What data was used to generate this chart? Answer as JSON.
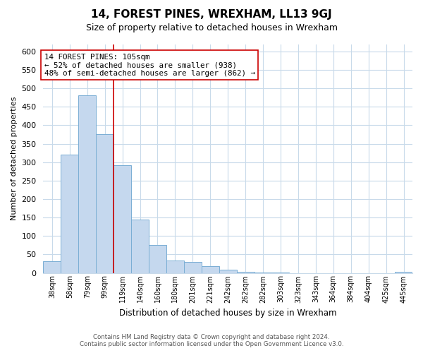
{
  "title": "14, FOREST PINES, WREXHAM, LL13 9GJ",
  "subtitle": "Size of property relative to detached houses in Wrexham",
  "xlabel": "Distribution of detached houses by size in Wrexham",
  "ylabel": "Number of detached properties",
  "bar_labels": [
    "38sqm",
    "58sqm",
    "79sqm",
    "99sqm",
    "119sqm",
    "140sqm",
    "160sqm",
    "180sqm",
    "201sqm",
    "221sqm",
    "242sqm",
    "262sqm",
    "282sqm",
    "303sqm",
    "323sqm",
    "343sqm",
    "364sqm",
    "384sqm",
    "404sqm",
    "425sqm",
    "445sqm"
  ],
  "bar_values": [
    32,
    321,
    482,
    376,
    292,
    144,
    76,
    34,
    30,
    18,
    9,
    2,
    1,
    1,
    0,
    0,
    0,
    0,
    0,
    0,
    3
  ],
  "bar_color": "#c5d8ee",
  "bar_edge_color": "#7aaed4",
  "vline_x": 3.5,
  "vline_color": "#cc0000",
  "annotation_title": "14 FOREST PINES: 105sqm",
  "annotation_line1": "← 52% of detached houses are smaller (938)",
  "annotation_line2": "48% of semi-detached houses are larger (862) →",
  "annotation_box_color": "#ffffff",
  "annotation_box_edge": "#cc0000",
  "ylim": [
    0,
    620
  ],
  "yticks": [
    0,
    50,
    100,
    150,
    200,
    250,
    300,
    350,
    400,
    450,
    500,
    550,
    600
  ],
  "footer_line1": "Contains HM Land Registry data © Crown copyright and database right 2024.",
  "footer_line2": "Contains public sector information licensed under the Open Government Licence v3.0.",
  "bg_color": "#ffffff",
  "grid_color": "#c8daea"
}
